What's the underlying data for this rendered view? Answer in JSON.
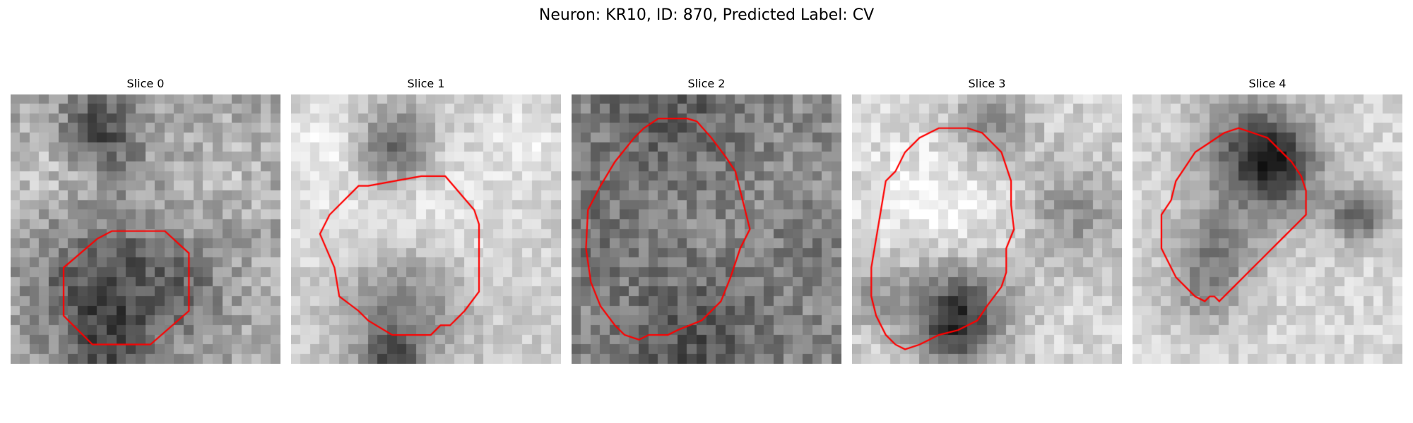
{
  "figure": {
    "title": "Neuron: KR10, ID: 870, Predicted Label: CV"
  },
  "colors": {
    "contour": "#ff0000",
    "colormap": "gray"
  },
  "slices": [
    {
      "title": "Slice 0",
      "contour": [
        [
          16,
          14.2
        ],
        [
          18.5,
          16.5
        ],
        [
          18.5,
          22.5
        ],
        [
          14.5,
          26
        ],
        [
          8.5,
          26
        ],
        [
          5.5,
          23
        ],
        [
          5.5,
          18
        ],
        [
          9,
          15
        ],
        [
          10.5,
          14.2
        ]
      ]
    },
    {
      "title": "Slice 1",
      "contour": [
        [
          13.5,
          8.5
        ],
        [
          16,
          8.5
        ],
        [
          19,
          12
        ],
        [
          19.5,
          13.5
        ],
        [
          19.5,
          20.5
        ],
        [
          18,
          22.5
        ],
        [
          16.5,
          24
        ],
        [
          15.5,
          24
        ],
        [
          14.5,
          25
        ],
        [
          10.5,
          25
        ],
        [
          8,
          23.5
        ],
        [
          7,
          22.5
        ],
        [
          5,
          21
        ],
        [
          4.5,
          18
        ],
        [
          3,
          14.5
        ],
        [
          4,
          12.5
        ],
        [
          7,
          9.5
        ],
        [
          8,
          9.5
        ]
      ]
    },
    {
      "title": "Slice 2",
      "contour": [
        [
          12,
          2.5
        ],
        [
          13,
          2.8
        ],
        [
          14.5,
          4.5
        ],
        [
          16,
          6.5
        ],
        [
          17,
          8
        ],
        [
          17.5,
          10
        ],
        [
          18,
          12
        ],
        [
          18.5,
          14
        ],
        [
          17.5,
          16
        ],
        [
          16.5,
          19
        ],
        [
          15.5,
          21.5
        ],
        [
          13.5,
          23.5
        ],
        [
          11,
          24.5
        ],
        [
          10,
          25
        ],
        [
          8,
          25
        ],
        [
          7,
          25.5
        ],
        [
          5.5,
          25
        ],
        [
          4.5,
          24
        ],
        [
          3,
          22
        ],
        [
          2,
          19.5
        ],
        [
          1.5,
          16
        ],
        [
          1.7,
          12
        ],
        [
          3,
          9.5
        ],
        [
          4.5,
          7
        ],
        [
          6.5,
          4.5
        ],
        [
          7.5,
          3.5
        ],
        [
          9,
          2.5
        ],
        [
          10.5,
          2.5
        ]
      ]
    },
    {
      "title": "Slice 3",
      "contour": [
        [
          12,
          3.5
        ],
        [
          13.5,
          4
        ],
        [
          14.5,
          5
        ],
        [
          15.5,
          6
        ],
        [
          16,
          7.5
        ],
        [
          16.5,
          9
        ],
        [
          16.5,
          11.5
        ],
        [
          16.8,
          14
        ],
        [
          16,
          16
        ],
        [
          16,
          18.5
        ],
        [
          15.5,
          20
        ],
        [
          14,
          22
        ],
        [
          13,
          23.5
        ],
        [
          11,
          24.5
        ],
        [
          9,
          25
        ],
        [
          8,
          25.5
        ],
        [
          7,
          26
        ],
        [
          5.5,
          26.5
        ],
        [
          4.5,
          26
        ],
        [
          3.5,
          25
        ],
        [
          2.5,
          23
        ],
        [
          2,
          21
        ],
        [
          2,
          18
        ],
        [
          2.5,
          15
        ],
        [
          3,
          12
        ],
        [
          3.5,
          9
        ],
        [
          4.5,
          8
        ],
        [
          5.5,
          6
        ],
        [
          7,
          4.5
        ],
        [
          9,
          3.5
        ],
        [
          10.5,
          3.5
        ]
      ]
    },
    {
      "title": "Slice 4",
      "contour": [
        [
          12.5,
          4
        ],
        [
          14,
          4.5
        ],
        [
          15.5,
          6
        ],
        [
          16.5,
          7
        ],
        [
          17.5,
          8.5
        ],
        [
          18,
          10
        ],
        [
          18,
          12.5
        ],
        [
          17,
          13.5
        ],
        [
          15.5,
          15
        ],
        [
          14.5,
          16
        ],
        [
          13.5,
          17
        ],
        [
          12.5,
          18
        ],
        [
          11.5,
          19
        ],
        [
          10.5,
          20
        ],
        [
          9.5,
          21
        ],
        [
          9,
          21.5
        ],
        [
          8.5,
          21
        ],
        [
          8,
          21
        ],
        [
          7.5,
          21.5
        ],
        [
          6.5,
          21
        ],
        [
          5.5,
          20
        ],
        [
          4.5,
          19
        ],
        [
          4,
          18
        ],
        [
          3.5,
          17
        ],
        [
          3,
          16
        ],
        [
          3,
          12.5
        ],
        [
          4,
          11
        ],
        [
          4.5,
          9
        ],
        [
          5.5,
          7.5
        ],
        [
          6.5,
          6
        ],
        [
          8,
          5
        ],
        [
          9.5,
          4
        ],
        [
          11,
          3.5
        ]
      ]
    }
  ]
}
